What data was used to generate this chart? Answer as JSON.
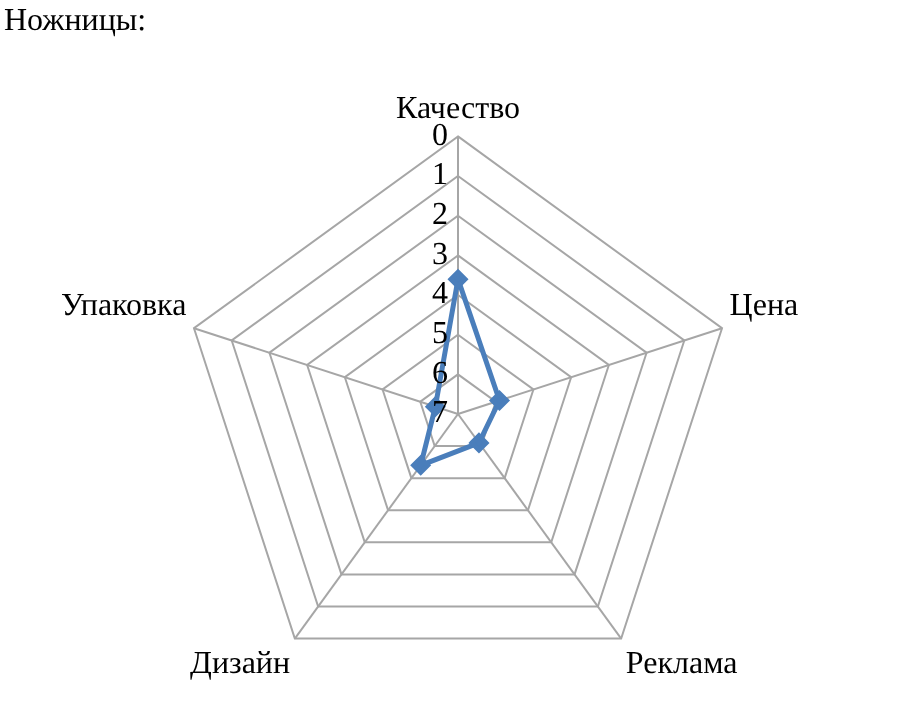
{
  "chart_data": {
    "type": "radar",
    "title": "Ножницы:",
    "categories": [
      "Качество",
      "Цена",
      "Реклама",
      "Дизайн",
      "Упаковка"
    ],
    "series": [
      {
        "color": "#4a7ebb",
        "values": [
          3.6,
          5.9,
          6.1,
          5.4,
          6.4
        ]
      }
    ],
    "ylim": [
      7,
      0
    ],
    "yticks": [
      0,
      1,
      2,
      3,
      4,
      5,
      6,
      7
    ],
    "grid": true,
    "legend": false,
    "marker": "diamond",
    "line_style": "solid"
  }
}
